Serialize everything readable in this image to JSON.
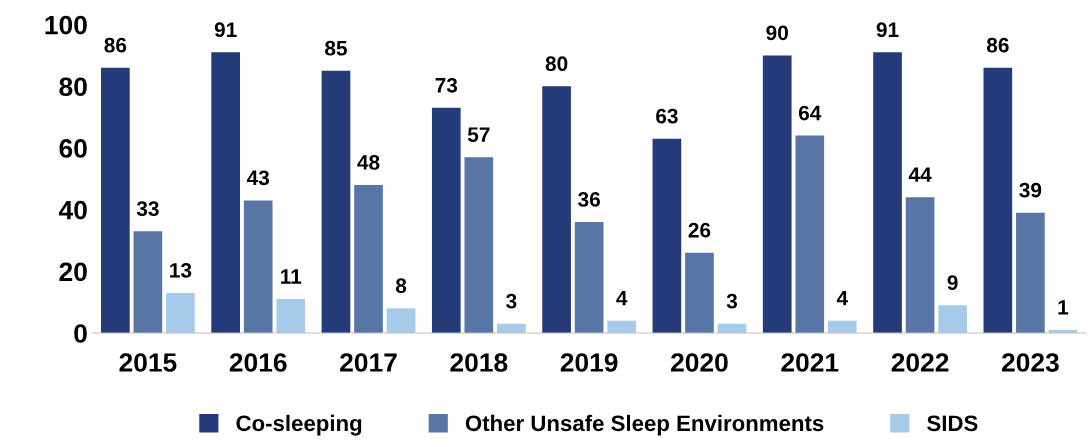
{
  "chart_data": {
    "type": "bar",
    "categories": [
      "2015",
      "2016",
      "2017",
      "2018",
      "2019",
      "2020",
      "2021",
      "2022",
      "2023"
    ],
    "series": [
      {
        "name": "Co-sleeping",
        "color": "#253a78",
        "values": [
          86,
          91,
          85,
          73,
          80,
          63,
          90,
          91,
          86
        ]
      },
      {
        "name": "Other Unsafe Sleep Environments",
        "color": "#5876a5",
        "values": [
          33,
          43,
          48,
          57,
          36,
          26,
          64,
          44,
          39
        ]
      },
      {
        "name": "SIDS",
        "color": "#a6cbea",
        "values": [
          13,
          11,
          8,
          3,
          4,
          3,
          4,
          9,
          1
        ]
      }
    ],
    "ylim": [
      0,
      100
    ],
    "yticks": [
      0,
      20,
      40,
      60,
      80,
      100
    ],
    "data_labels": true,
    "grid": false,
    "legend": "bottom"
  }
}
